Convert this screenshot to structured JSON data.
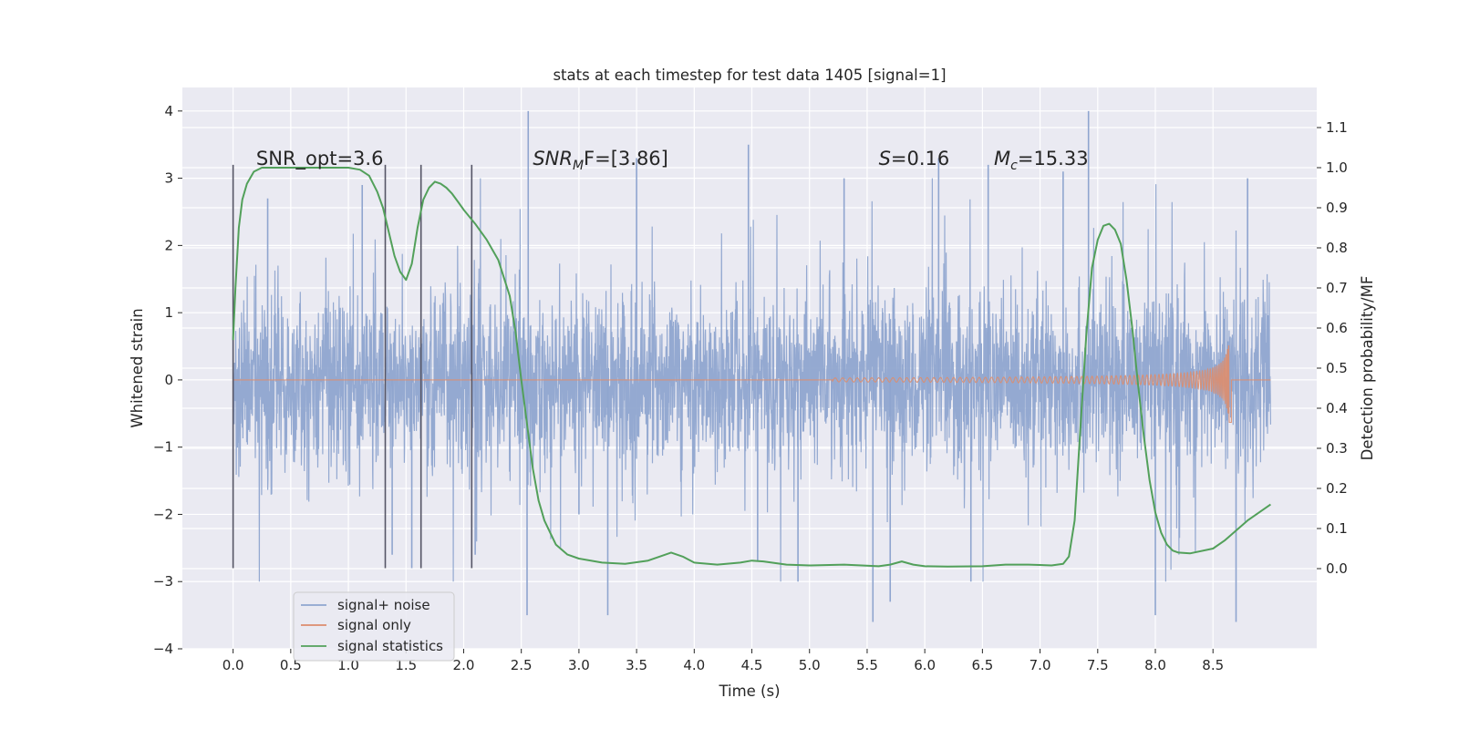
{
  "chart_data": {
    "type": "line",
    "title": "stats at each timestep for test data 1405 [signal=1]",
    "xlabel": "Time (s)",
    "ylabel_left": "Whitened strain",
    "ylabel_right": "Detection probability/MF",
    "xlim": [
      -0.44,
      9.4
    ],
    "ylim_left": [
      -4.0,
      4.35
    ],
    "ylim_right": [
      -0.2,
      1.2
    ],
    "xticks": [
      "0.0",
      "0.5",
      "1.0",
      "1.5",
      "2.0",
      "2.5",
      "3.0",
      "3.5",
      "4.0",
      "4.5",
      "5.0",
      "5.5",
      "6.0",
      "6.5",
      "7.0",
      "7.5",
      "8.0",
      "8.5"
    ],
    "xtick_values": [
      0.0,
      0.5,
      1.0,
      1.5,
      2.0,
      2.5,
      3.0,
      3.5,
      4.0,
      4.5,
      5.0,
      5.5,
      6.0,
      6.5,
      7.0,
      7.5,
      8.0,
      8.5
    ],
    "yticks_left": [
      "4",
      "3",
      "2",
      "1",
      "0",
      "−1",
      "−2",
      "−3",
      "−4"
    ],
    "ytick_values_left": [
      4,
      3,
      2,
      1,
      0,
      -1,
      -2,
      -3,
      -4
    ],
    "yticks_right": [
      "1.1",
      "1.0",
      "0.9",
      "0.8",
      "0.7",
      "0.6",
      "0.5",
      "0.4",
      "0.3",
      "0.2",
      "0.1",
      "0.0"
    ],
    "ytick_values_right": [
      1.1,
      1.0,
      0.9,
      0.8,
      0.7,
      0.6,
      0.5,
      0.4,
      0.3,
      0.2,
      0.1,
      0.0
    ],
    "grid": true,
    "legend_position": "bottom-left",
    "annotations": [
      {
        "text": "SNR_opt=3.6",
        "x": 0.2
      },
      {
        "base": "SNR",
        "sub": "M",
        "tail": "F=[3.86]",
        "x": 2.6
      },
      {
        "base": "S",
        "sub": "",
        "tail": "=0.16",
        "x": 5.6
      },
      {
        "base": "M",
        "sub": "c",
        "tail": "=15.33",
        "x": 6.6
      }
    ],
    "annotation_y": 3.2,
    "vertical_markers": [
      0.0,
      1.32,
      1.63,
      2.07
    ],
    "vertical_marker_range": [
      -2.8,
      3.2
    ],
    "series": [
      {
        "name": "signal+ noise",
        "color": "#8fa5cf",
        "axis": "left",
        "x_range": [
          0.0,
          9.0
        ],
        "envelope_sigma": 0.62,
        "peak_points": [
          [
            0.3,
            2.7
          ],
          [
            1.12,
            2.9
          ],
          [
            1.38,
            -2.6
          ],
          [
            1.55,
            -2.8
          ],
          [
            2.1,
            -2.6
          ],
          [
            2.55,
            -3.5
          ],
          [
            2.56,
            4.0
          ],
          [
            3.0,
            -2.0
          ],
          [
            3.25,
            -3.5
          ],
          [
            3.5,
            3.3
          ],
          [
            4.47,
            3.5
          ],
          [
            4.55,
            -2.7
          ],
          [
            4.9,
            -3.0
          ],
          [
            5.3,
            3.0
          ],
          [
            5.55,
            -3.6
          ],
          [
            5.7,
            -3.3
          ],
          [
            6.12,
            3.3
          ],
          [
            6.4,
            -3.0
          ],
          [
            6.55,
            3.2
          ],
          [
            7.2,
            3.1
          ],
          [
            7.42,
            4.0
          ],
          [
            8.0,
            -3.5
          ],
          [
            8.7,
            -3.6
          ],
          [
            8.8,
            3.0
          ]
        ]
      },
      {
        "name": "signal only",
        "color": "#dd8d6d",
        "axis": "left",
        "chirp_start": 5.2,
        "chirp_end": 8.66,
        "chirp_peak_amp": 0.65
      },
      {
        "name": "signal statistics",
        "color": "#52a05a",
        "axis": "right",
        "x": [
          0.0,
          0.02,
          0.05,
          0.08,
          0.12,
          0.18,
          0.25,
          0.35,
          0.5,
          0.8,
          1.0,
          1.1,
          1.18,
          1.25,
          1.3,
          1.35,
          1.4,
          1.45,
          1.5,
          1.55,
          1.6,
          1.65,
          1.7,
          1.75,
          1.8,
          1.85,
          1.9,
          1.95,
          2.0,
          2.1,
          2.2,
          2.3,
          2.4,
          2.45,
          2.5,
          2.55,
          2.6,
          2.65,
          2.7,
          2.75,
          2.8,
          2.9,
          3.0,
          3.2,
          3.4,
          3.6,
          3.7,
          3.8,
          3.9,
          4.0,
          4.2,
          4.4,
          4.5,
          4.6,
          4.8,
          5.0,
          5.3,
          5.6,
          5.7,
          5.8,
          5.9,
          6.0,
          6.2,
          6.5,
          6.7,
          6.9,
          7.1,
          7.2,
          7.25,
          7.3,
          7.35,
          7.4,
          7.45,
          7.5,
          7.55,
          7.6,
          7.65,
          7.7,
          7.75,
          7.8,
          7.85,
          7.9,
          7.95,
          8.0,
          8.05,
          8.1,
          8.15,
          8.2,
          8.3,
          8.5,
          8.6,
          8.8,
          9.0
        ],
        "y": [
          0.57,
          0.7,
          0.85,
          0.92,
          0.96,
          0.99,
          1.0,
          1.0,
          1.0,
          1.0,
          1.0,
          0.995,
          0.98,
          0.94,
          0.9,
          0.84,
          0.78,
          0.74,
          0.72,
          0.76,
          0.85,
          0.92,
          0.95,
          0.965,
          0.96,
          0.95,
          0.935,
          0.915,
          0.895,
          0.86,
          0.82,
          0.77,
          0.68,
          0.59,
          0.47,
          0.36,
          0.25,
          0.17,
          0.12,
          0.09,
          0.06,
          0.035,
          0.025,
          0.015,
          0.012,
          0.02,
          0.03,
          0.04,
          0.03,
          0.015,
          0.01,
          0.015,
          0.02,
          0.018,
          0.01,
          0.008,
          0.01,
          0.006,
          0.01,
          0.018,
          0.01,
          0.006,
          0.005,
          0.006,
          0.01,
          0.01,
          0.008,
          0.012,
          0.03,
          0.12,
          0.35,
          0.58,
          0.75,
          0.82,
          0.855,
          0.86,
          0.845,
          0.81,
          0.72,
          0.6,
          0.46,
          0.33,
          0.22,
          0.14,
          0.09,
          0.06,
          0.045,
          0.04,
          0.038,
          0.05,
          0.07,
          0.12,
          0.16
        ]
      }
    ]
  }
}
